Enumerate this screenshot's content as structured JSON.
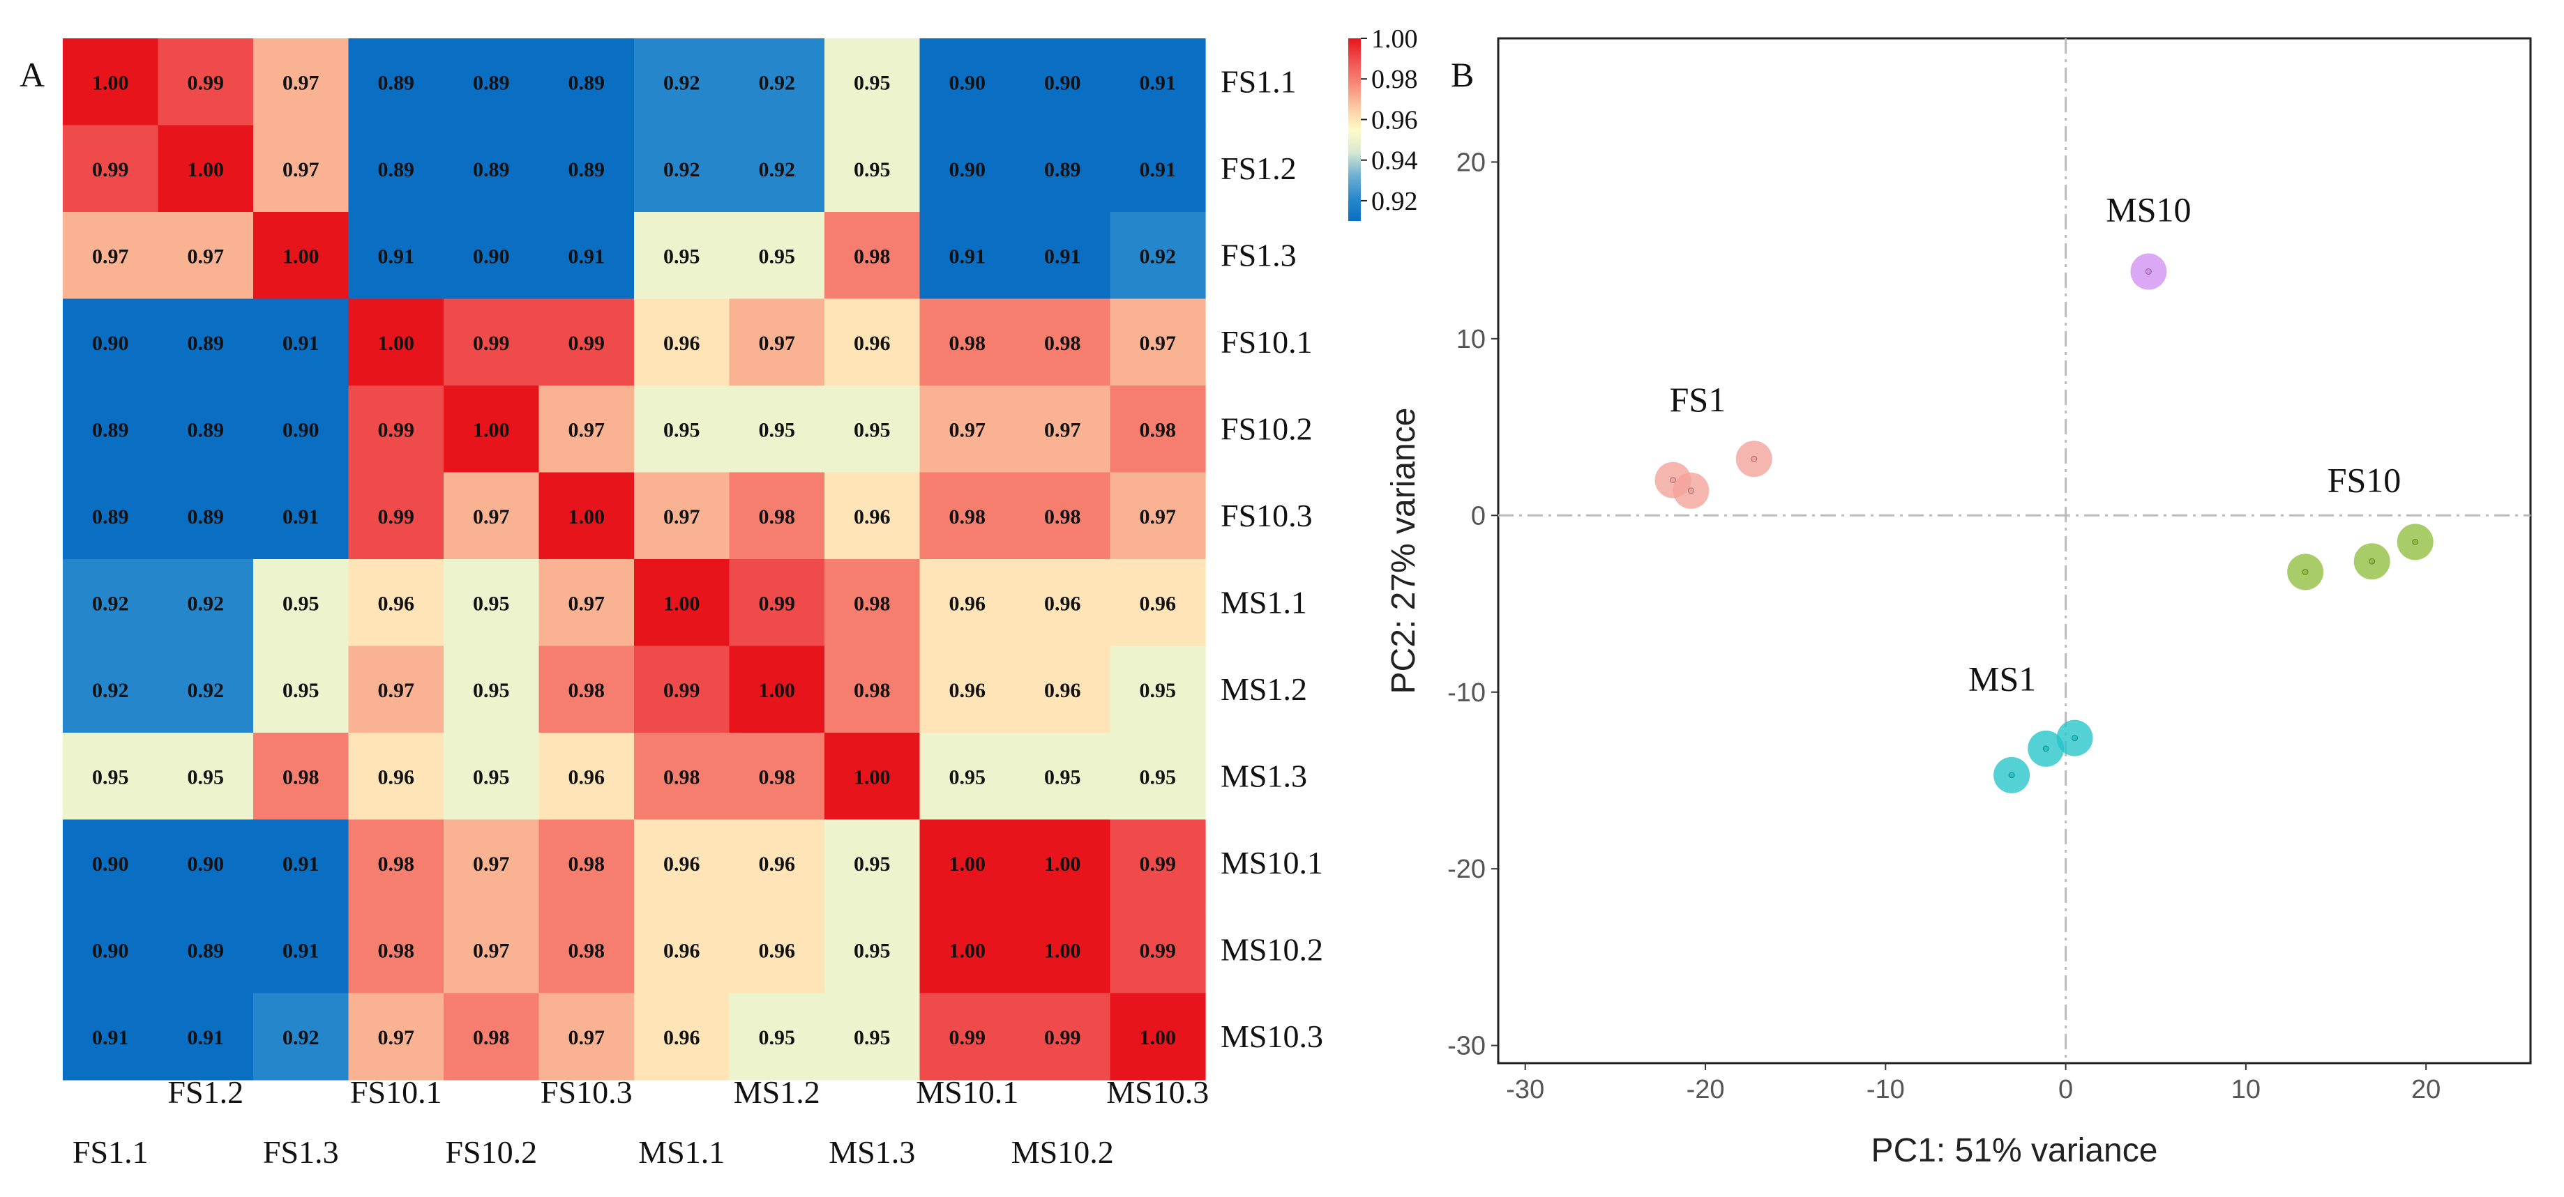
{
  "panels": {
    "a_letter": "A",
    "b_letter": "B"
  },
  "chart_data": [
    {
      "type": "heatmap",
      "title": "",
      "rows": [
        "FS1.1",
        "FS1.2",
        "FS1.3",
        "FS10.1",
        "FS10.2",
        "FS10.3",
        "MS1.1",
        "MS1.2",
        "MS1.3",
        "MS10.1",
        "MS10.2",
        "MS10.3"
      ],
      "columns": [
        "FS1.1",
        "FS1.2",
        "FS1.3",
        "FS10.1",
        "FS10.2",
        "FS10.3",
        "MS1.1",
        "MS1.2",
        "MS1.3",
        "MS10.1",
        "MS10.2",
        "MS10.3"
      ],
      "values": [
        [
          "1.00",
          "0.99",
          "0.97",
          "0.89",
          "0.89",
          "0.89",
          "0.92",
          "0.92",
          "0.95",
          "0.90",
          "0.90",
          "0.91"
        ],
        [
          "0.99",
          "1.00",
          "0.97",
          "0.89",
          "0.89",
          "0.89",
          "0.92",
          "0.92",
          "0.95",
          "0.90",
          "0.89",
          "0.91"
        ],
        [
          "0.97",
          "0.97",
          "1.00",
          "0.91",
          "0.90",
          "0.91",
          "0.95",
          "0.95",
          "0.98",
          "0.91",
          "0.91",
          "0.92"
        ],
        [
          "0.90",
          "0.89",
          "0.91",
          "1.00",
          "0.99",
          "0.99",
          "0.96",
          "0.97",
          "0.96",
          "0.98",
          "0.98",
          "0.97"
        ],
        [
          "0.89",
          "0.89",
          "0.90",
          "0.99",
          "1.00",
          "0.97",
          "0.95",
          "0.95",
          "0.95",
          "0.97",
          "0.97",
          "0.98"
        ],
        [
          "0.89",
          "0.89",
          "0.91",
          "0.99",
          "0.97",
          "1.00",
          "0.97",
          "0.98",
          "0.96",
          "0.98",
          "0.98",
          "0.97"
        ],
        [
          "0.92",
          "0.92",
          "0.95",
          "0.96",
          "0.95",
          "0.97",
          "1.00",
          "0.99",
          "0.98",
          "0.96",
          "0.96",
          "0.96"
        ],
        [
          "0.92",
          "0.92",
          "0.95",
          "0.97",
          "0.95",
          "0.98",
          "0.99",
          "1.00",
          "0.98",
          "0.96",
          "0.96",
          "0.95"
        ],
        [
          "0.95",
          "0.95",
          "0.98",
          "0.96",
          "0.95",
          "0.96",
          "0.98",
          "0.98",
          "1.00",
          "0.95",
          "0.95",
          "0.95"
        ],
        [
          "0.90",
          "0.90",
          "0.91",
          "0.98",
          "0.97",
          "0.98",
          "0.96",
          "0.96",
          "0.95",
          "1.00",
          "1.00",
          "0.99"
        ],
        [
          "0.90",
          "0.89",
          "0.91",
          "0.98",
          "0.97",
          "0.98",
          "0.96",
          "0.96",
          "0.95",
          "1.00",
          "1.00",
          "0.99"
        ],
        [
          "0.91",
          "0.91",
          "0.92",
          "0.97",
          "0.98",
          "0.97",
          "0.96",
          "0.95",
          "0.95",
          "0.99",
          "0.99",
          "1.00"
        ]
      ],
      "colorbar": {
        "ticks": [
          "1.00",
          "0.98",
          "0.96",
          "0.94",
          "0.92"
        ],
        "range": [
          0.91,
          1.0
        ],
        "colors": [
          "#0a6fc2",
          "#2a89cc",
          "#6fb0d2",
          "#d6e8d2",
          "#fffbc8",
          "#fcc8a0",
          "#f78a76",
          "#f05250",
          "#e8141c"
        ]
      }
    },
    {
      "type": "scatter",
      "xlabel": "PC1: 51% variance",
      "ylabel": "PC2: 27% variance",
      "xlim": [
        -31.5,
        25.8
      ],
      "ylim": [
        -31,
        27
      ],
      "xticks": [
        "-30",
        "-20",
        "-10",
        "0",
        "10",
        "20"
      ],
      "xtick_values": [
        -30,
        -20,
        -10,
        0,
        10,
        20
      ],
      "yticks": [
        "20",
        "10",
        "0",
        "-10",
        "-20",
        "-30"
      ],
      "ytick_values": [
        20,
        10,
        0,
        -10,
        -20,
        -30
      ],
      "reference_lines": {
        "x": 0,
        "y": 0
      },
      "groups": [
        {
          "name": "FS1",
          "color": "#f4a19a",
          "points": [
            [
              -21.8,
              2.0
            ],
            [
              -20.8,
              1.4
            ],
            [
              -17.3,
              3.2
            ]
          ]
        },
        {
          "name": "MS10",
          "color": "#cf8ff2",
          "points": [
            [
              4.6,
              13.8
            ]
          ]
        },
        {
          "name": "FS10",
          "color": "#8fbe3c",
          "points": [
            [
              13.3,
              -3.2
            ],
            [
              17.0,
              -2.6
            ],
            [
              19.4,
              -1.5
            ]
          ]
        },
        {
          "name": "MS1",
          "color": "#22c4c8",
          "points": [
            [
              -3.0,
              -14.7
            ],
            [
              -1.1,
              -13.2
            ],
            [
              0.5,
              -12.6
            ]
          ]
        }
      ]
    }
  ]
}
